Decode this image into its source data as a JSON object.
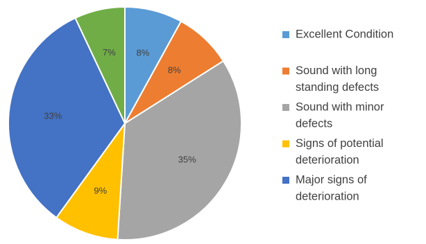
{
  "chart_data": {
    "type": "pie",
    "title": "",
    "categories": [
      "Excellent Condition",
      "Sound with long standing defects",
      "Sound with minor defects",
      "Signs of potential deterioration",
      "Major signs of deterioration",
      ""
    ],
    "legend_lines": [
      [
        "Excellent Condition"
      ],
      [
        "Sound with long",
        "standing defects"
      ],
      [
        "Sound with minor",
        "defects"
      ],
      [
        "Signs of potential",
        "deterioration"
      ],
      [
        "Major signs of",
        "deterioration"
      ]
    ],
    "values": [
      8,
      8,
      35,
      9,
      33,
      7
    ],
    "labels": [
      "8%",
      "8%",
      "35%",
      "9%",
      "33%",
      "7%"
    ],
    "colors": [
      "#5B9BD5",
      "#ED7D31",
      "#A5A5A5",
      "#FFC000",
      "#4472C4",
      "#70AD47"
    ],
    "legend_placement": "right"
  }
}
